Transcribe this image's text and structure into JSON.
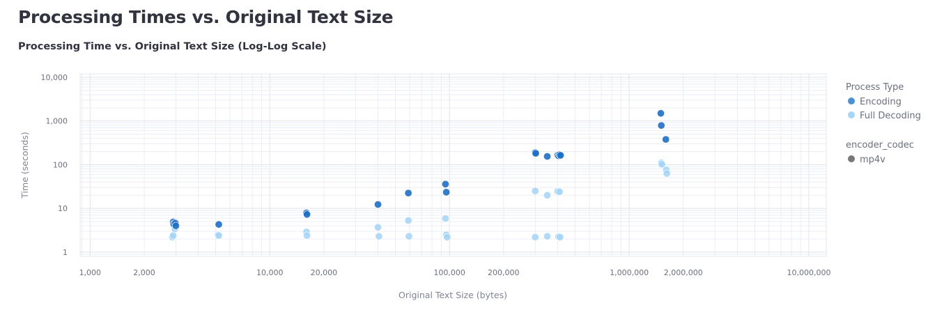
{
  "page": {
    "title": "Processing Times vs. Original Text Size"
  },
  "chart_data": {
    "type": "scatter",
    "title": "Processing Time vs. Original Text Size (Log-Log Scale)",
    "xlabel": "Original Text Size (bytes)",
    "ylabel": "Time (seconds)",
    "xscale": "log",
    "yscale": "log",
    "xlim": [
      880,
      12500000
    ],
    "ylim": [
      0.8,
      12000
    ],
    "grid": true,
    "x_ticks": [
      {
        "value": 1000,
        "label": "1,000"
      },
      {
        "value": 2000,
        "label": "2,000"
      },
      {
        "value": 10000,
        "label": "10,000"
      },
      {
        "value": 20000,
        "label": "20,000"
      },
      {
        "value": 100000,
        "label": "100,000"
      },
      {
        "value": 200000,
        "label": "200,000"
      },
      {
        "value": 1000000,
        "label": "1,000,000"
      },
      {
        "value": 2000000,
        "label": "2,000,000"
      },
      {
        "value": 10000000,
        "label": "10,000,000"
      }
    ],
    "y_ticks": [
      {
        "value": 1,
        "label": "1"
      },
      {
        "value": 10,
        "label": "10"
      },
      {
        "value": 100,
        "label": "100"
      },
      {
        "value": 1000,
        "label": "1,000"
      },
      {
        "value": 10000,
        "label": "10,000"
      }
    ],
    "legend": {
      "placement": "right",
      "color_title": "Process Type",
      "symbol_title": "encoder_codec",
      "symbol_entries": [
        {
          "label": "mp4v",
          "color": "#777777"
        }
      ]
    },
    "series": [
      {
        "name": "Encoding",
        "color": "#1f6fc5",
        "points": [
          [
            2900,
            4.9
          ],
          [
            2920,
            4.4
          ],
          [
            2980,
            4.6
          ],
          [
            3000,
            4.0
          ],
          [
            5200,
            4.3
          ],
          [
            16000,
            7.9
          ],
          [
            16100,
            7.3
          ],
          [
            40000,
            12.3
          ],
          [
            59000,
            22.5
          ],
          [
            95000,
            36.0
          ],
          [
            96000,
            23.5
          ],
          [
            300000,
            190
          ],
          [
            302000,
            182
          ],
          [
            350000,
            155
          ],
          [
            400000,
            165
          ],
          [
            405000,
            160
          ],
          [
            410000,
            170
          ],
          [
            415000,
            164
          ],
          [
            1500000,
            1500
          ],
          [
            1510000,
            790
          ],
          [
            1600000,
            380
          ]
        ]
      },
      {
        "name": "Full Decoding",
        "color": "#a4d4f7",
        "points": [
          [
            2870,
            2.2
          ],
          [
            2900,
            2.4
          ],
          [
            2960,
            3.4
          ],
          [
            5150,
            2.5
          ],
          [
            5200,
            2.4
          ],
          [
            16000,
            2.9
          ],
          [
            16100,
            2.4
          ],
          [
            40000,
            3.7
          ],
          [
            40500,
            2.3
          ],
          [
            59000,
            5.3
          ],
          [
            59500,
            2.3
          ],
          [
            95000,
            5.9
          ],
          [
            96000,
            2.5
          ],
          [
            97000,
            2.2
          ],
          [
            300000,
            25
          ],
          [
            300000,
            2.2
          ],
          [
            350000,
            20
          ],
          [
            350000,
            2.3
          ],
          [
            400000,
            24.5
          ],
          [
            410000,
            24
          ],
          [
            405000,
            2.25
          ],
          [
            412000,
            2.2
          ],
          [
            1510000,
            110
          ],
          [
            1520000,
            102
          ],
          [
            1610000,
            76
          ],
          [
            1620000,
            63
          ]
        ]
      }
    ]
  }
}
